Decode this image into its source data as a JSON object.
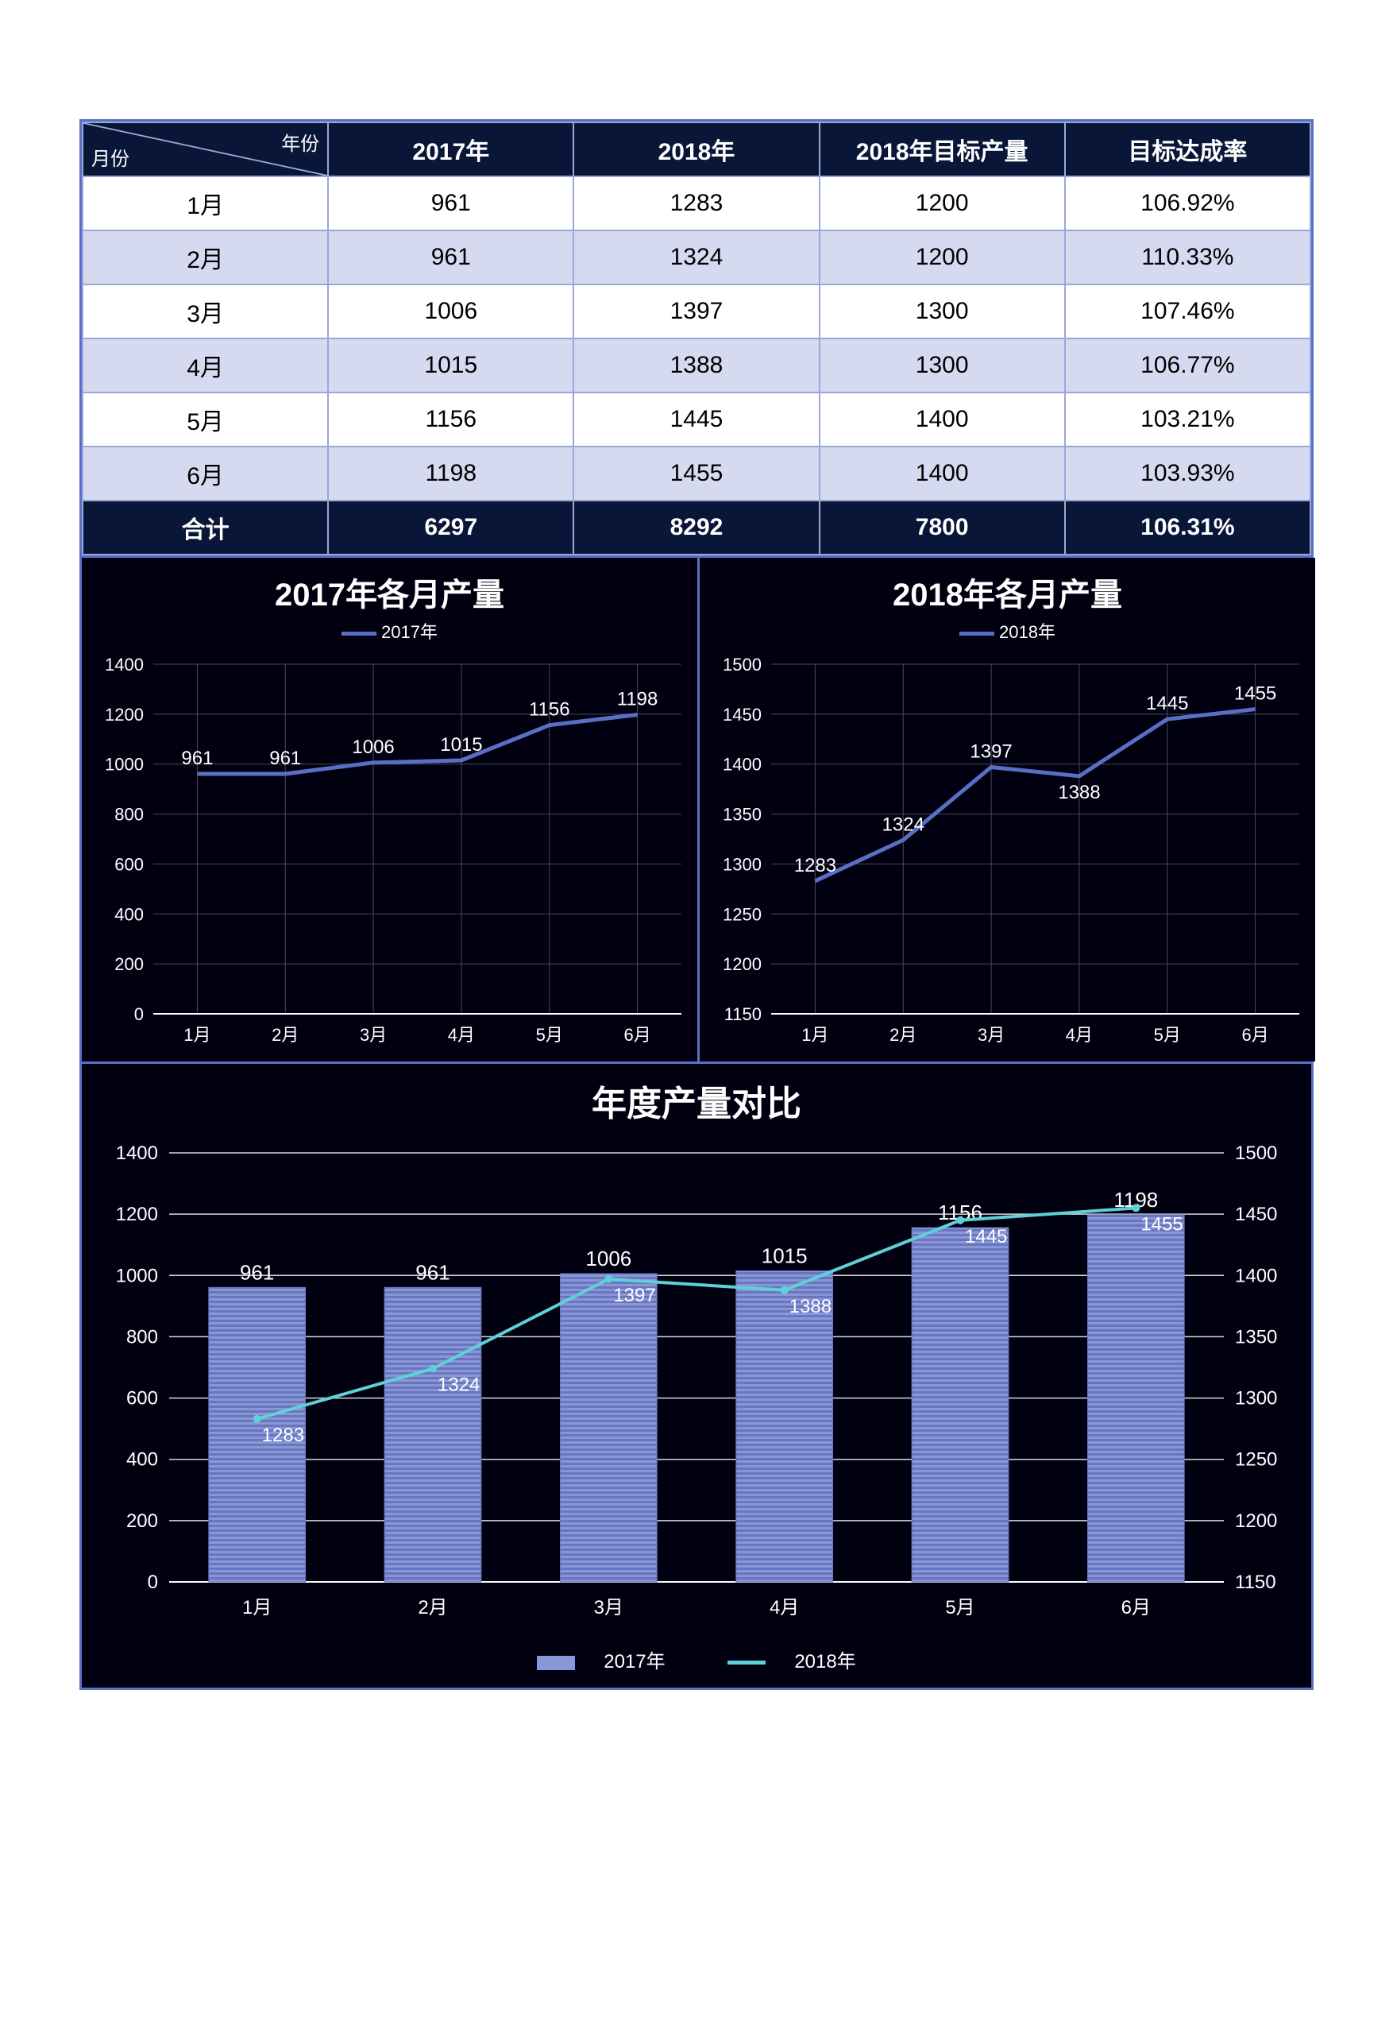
{
  "table": {
    "corner_year": "年份",
    "corner_month": "月份",
    "headers": [
      "2017年",
      "2018年",
      "2018年目标产量",
      "目标达成率"
    ],
    "months": [
      "1月",
      "2月",
      "3月",
      "4月",
      "5月",
      "6月"
    ],
    "rows": [
      {
        "y2017": "961",
        "y2018": "1283",
        "target": "1200",
        "rate": "106.92%"
      },
      {
        "y2017": "961",
        "y2018": "1324",
        "target": "1200",
        "rate": "110.33%"
      },
      {
        "y2017": "1006",
        "y2018": "1397",
        "target": "1300",
        "rate": "107.46%"
      },
      {
        "y2017": "1015",
        "y2018": "1388",
        "target": "1300",
        "rate": "106.77%"
      },
      {
        "y2017": "1156",
        "y2018": "1445",
        "target": "1400",
        "rate": "103.21%"
      },
      {
        "y2017": "1198",
        "y2018": "1455",
        "target": "1400",
        "rate": "103.93%"
      }
    ],
    "total_label": "合计",
    "total": {
      "y2017": "6297",
      "y2018": "8292",
      "target": "7800",
      "rate": "106.31%"
    }
  },
  "chart2017": {
    "type": "line",
    "title": "2017年各月产量",
    "legend_label": "2017年",
    "categories": [
      "1月",
      "2月",
      "3月",
      "4月",
      "5月",
      "6月"
    ],
    "values": [
      961,
      961,
      1006,
      1015,
      1156,
      1198
    ],
    "ylim": [
      0,
      1400
    ],
    "ytick_step": 200,
    "line_color": "#5a6fc4",
    "line_width": 5,
    "grid_color": "#4a4a5a",
    "text_color": "#ffffff",
    "tick_fontsize": 22,
    "value_fontsize": 24
  },
  "chart2018": {
    "type": "line",
    "title": "2018年各月产量",
    "legend_label": "2018年",
    "categories": [
      "1月",
      "2月",
      "3月",
      "4月",
      "5月",
      "6月"
    ],
    "values": [
      1283,
      1324,
      1397,
      1388,
      1445,
      1455
    ],
    "ylim": [
      1150,
      1500
    ],
    "ytick_step": 50,
    "line_color": "#5a6fc4",
    "line_width": 5,
    "grid_color": "#4a4a5a",
    "text_color": "#ffffff",
    "tick_fontsize": 22,
    "value_fontsize": 24
  },
  "chartCombo": {
    "type": "bar+line",
    "title": "年度产量对比",
    "categories": [
      "1月",
      "2月",
      "3月",
      "4月",
      "5月",
      "6月"
    ],
    "bar_series_label": "2017年",
    "bar_values": [
      961,
      961,
      1006,
      1015,
      1156,
      1198
    ],
    "bar_ylim": [
      0,
      1400
    ],
    "bar_ytick_step": 200,
    "bar_fill": "#8a97d6",
    "bar_stripe": "#6876c0",
    "bar_width_ratio": 0.55,
    "line_series_label": "2018年",
    "line_values": [
      1283,
      1324,
      1397,
      1388,
      1445,
      1455
    ],
    "line_ylim": [
      1150,
      1500
    ],
    "line_ytick_step": 50,
    "line_color": "#5fd0d8",
    "line_width": 4,
    "marker_size": 5,
    "grid_color": "#d9d9d9",
    "text_color": "#ffffff",
    "tick_fontsize": 24,
    "value_fontsize": 26
  },
  "colors": {
    "frame": "#5a6fc4",
    "bg": "#000011",
    "header_bg": "#0a1638",
    "row_alt": "#d5daf0"
  }
}
